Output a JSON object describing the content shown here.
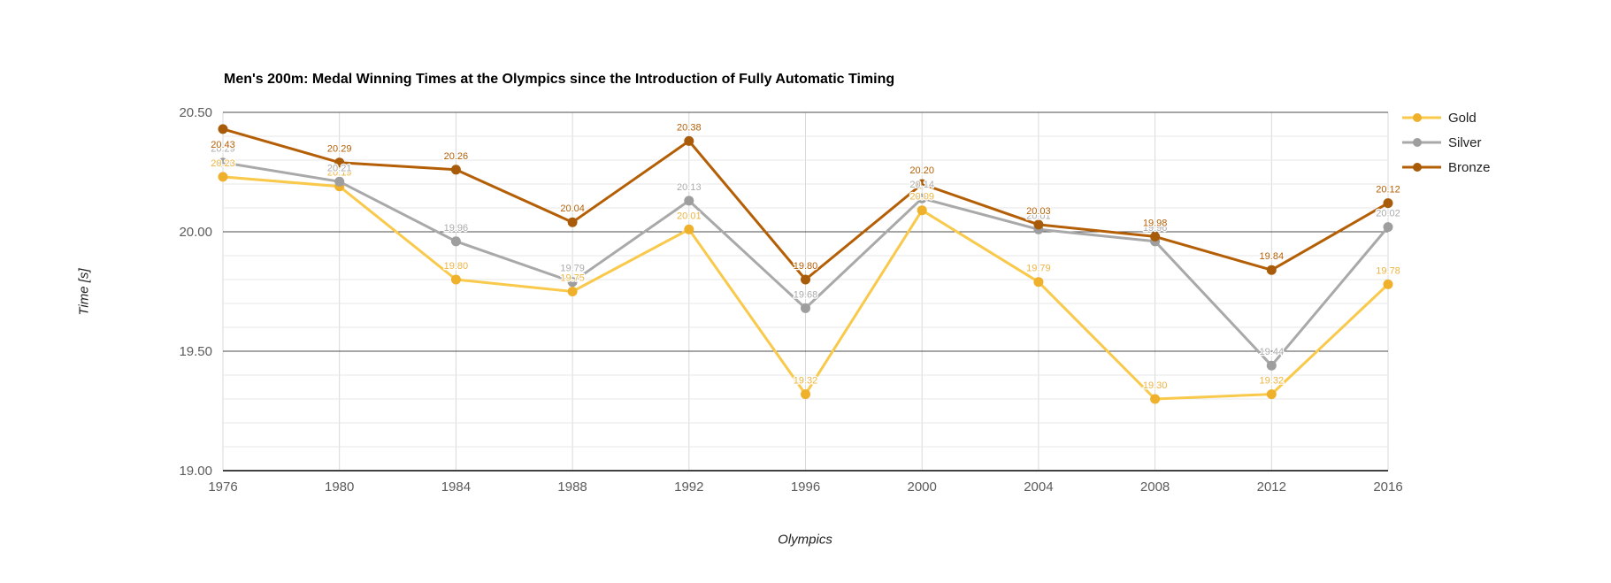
{
  "background_color": "#ffffff",
  "chart_data": {
    "type": "line",
    "title": "Men's 200m: Medal Winning Times at the Olympics since the Introduction of Fully Automatic Timing",
    "xlabel": "Olympics",
    "ylabel": "Time [s]",
    "x": [
      1976,
      1980,
      1984,
      1988,
      1992,
      1996,
      2000,
      2004,
      2008,
      2012,
      2016
    ],
    "series": [
      {
        "name": "Gold",
        "marker_color": "#efb02c",
        "line_color": "#f8c94b",
        "label_color": "#edb541",
        "values": [
          20.23,
          20.19,
          19.8,
          19.75,
          20.01,
          19.32,
          20.09,
          19.79,
          19.3,
          19.32,
          19.78
        ]
      },
      {
        "name": "Silver",
        "marker_color": "#9e9e9e",
        "line_color": "#a9a9a9",
        "label_color": "#ababab",
        "values": [
          20.29,
          20.21,
          19.96,
          19.79,
          20.13,
          19.68,
          20.14,
          20.01,
          19.96,
          19.44,
          20.02
        ]
      },
      {
        "name": "Bronze",
        "marker_color": "#a85c09",
        "line_color": "#b45f06",
        "label_color": "#b45f06",
        "values": [
          20.43,
          20.29,
          20.26,
          20.04,
          20.38,
          19.8,
          20.2,
          20.03,
          19.98,
          19.84,
          20.12
        ]
      }
    ],
    "ylim": [
      19.0,
      20.5
    ],
    "yticks": [
      19.0,
      19.5,
      20.0,
      20.5
    ],
    "ytick_labels": [
      "19.00",
      "19.50",
      "20.00",
      "20.50"
    ],
    "minor_grid_step": 0.1,
    "grid": true,
    "data_labels": true,
    "legend_position": "right-top",
    "grid_colors": {
      "major": "#4d4d4d",
      "minor": "#e7e7e7",
      "vertical": "#d9d9d9",
      "baseline": "#424242"
    },
    "tick_label_color": "#5b5b5b"
  }
}
